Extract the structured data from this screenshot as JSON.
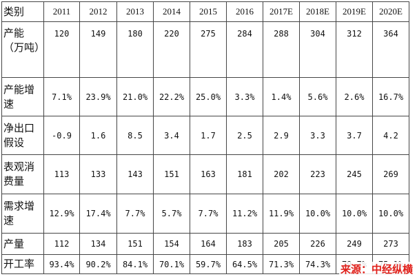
{
  "header": {
    "category": "类别",
    "years": [
      "2011",
      "2012",
      "2013",
      "2014",
      "2015",
      "2016",
      "2017E",
      "2018E",
      "2019E",
      "2020E"
    ]
  },
  "rows": [
    {
      "label": "产能（万吨）",
      "values": [
        "120",
        "149",
        "180",
        "220",
        "275",
        "284",
        "288",
        "304",
        "312",
        "364"
      ]
    },
    {
      "label": "产能增速",
      "values": [
        "7.1%",
        "23.9%",
        "21.0%",
        "22.2%",
        "25.0%",
        "3.3%",
        "1.4%",
        "5.6%",
        "2.6%",
        "16.7%"
      ]
    },
    {
      "label": "净出口假设",
      "values": [
        "-0.9",
        "1.6",
        "8.5",
        "3.4",
        "1.7",
        "2.5",
        "2.9",
        "3.3",
        "3.7",
        "4.2"
      ]
    },
    {
      "label": "表观消费量",
      "values": [
        "113",
        "133",
        "143",
        "151",
        "163",
        "181",
        "202",
        "223",
        "245",
        "269"
      ]
    },
    {
      "label": "需求增速",
      "values": [
        "12.9%",
        "17.4%",
        "7.7%",
        "5.7%",
        "7.7%",
        "11.2%",
        "11.9%",
        "10.0%",
        "10.0%",
        "10.0%"
      ]
    },
    {
      "label": "产量",
      "values": [
        "112",
        "134",
        "151",
        "154",
        "164",
        "183",
        "205",
        "226",
        "249",
        "273"
      ]
    },
    {
      "label": "开工率",
      "values": [
        "93.4%",
        "90.2%",
        "84.1%",
        "70.1%",
        "59.7%",
        "64.5%",
        "71.3%",
        "74.3%",
        "79.7%",
        "75.1%"
      ]
    }
  ],
  "source": "来源：中经纵横"
}
